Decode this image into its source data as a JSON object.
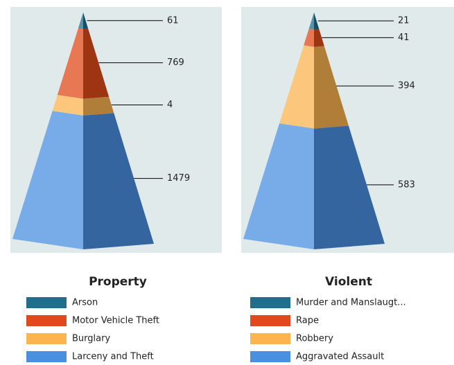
{
  "chart_data": [
    {
      "type": "pyramid",
      "title": "Property",
      "categories": [
        "Arson",
        "Motor Vehicle Theft",
        "Burglary",
        "Larceny and Theft"
      ],
      "values": [
        61,
        769,
        4,
        1479
      ],
      "colors": [
        "#1f6e8c",
        "#e04a1a",
        "#fbb450",
        "#4a90e2"
      ]
    },
    {
      "type": "pyramid",
      "title": "Violent",
      "categories": [
        "Murder and Manslaugt...",
        "Rape",
        "Robbery",
        "Aggravated Assault"
      ],
      "values": [
        21,
        41,
        394,
        583
      ],
      "colors": [
        "#1f6e8c",
        "#e04a1a",
        "#fbb450",
        "#4a90e2"
      ]
    }
  ]
}
